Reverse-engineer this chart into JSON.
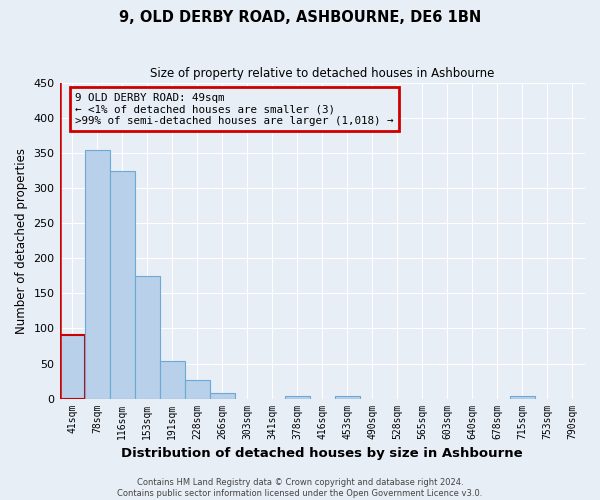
{
  "title": "9, OLD DERBY ROAD, ASHBOURNE, DE6 1BN",
  "subtitle": "Size of property relative to detached houses in Ashbourne",
  "xlabel": "Distribution of detached houses by size in Ashbourne",
  "ylabel": "Number of detached properties",
  "bin_labels": [
    "41sqm",
    "78sqm",
    "116sqm",
    "153sqm",
    "191sqm",
    "228sqm",
    "266sqm",
    "303sqm",
    "341sqm",
    "378sqm",
    "416sqm",
    "453sqm",
    "490sqm",
    "528sqm",
    "565sqm",
    "603sqm",
    "640sqm",
    "678sqm",
    "715sqm",
    "753sqm",
    "790sqm"
  ],
  "bar_heights": [
    90,
    355,
    325,
    175,
    53,
    26,
    8,
    0,
    0,
    4,
    0,
    3,
    0,
    0,
    0,
    0,
    0,
    0,
    4,
    0,
    0
  ],
  "bar_color": "#b8d0ea",
  "bar_edge_color": "#6aaad4",
  "highlight_color": "#cc0000",
  "ylim": [
    0,
    450
  ],
  "yticks": [
    0,
    50,
    100,
    150,
    200,
    250,
    300,
    350,
    400,
    450
  ],
  "annotation_line1": "9 OLD DERBY ROAD: 49sqm",
  "annotation_line2": "← <1% of detached houses are smaller (3)",
  "annotation_line3": ">99% of semi-detached houses are larger (1,018) →",
  "annotation_box_color": "#cc0000",
  "footer_line1": "Contains HM Land Registry data © Crown copyright and database right 2024.",
  "footer_line2": "Contains public sector information licensed under the Open Government Licence v3.0.",
  "bg_color": "#e8eef6",
  "grid_color": "#ffffff"
}
